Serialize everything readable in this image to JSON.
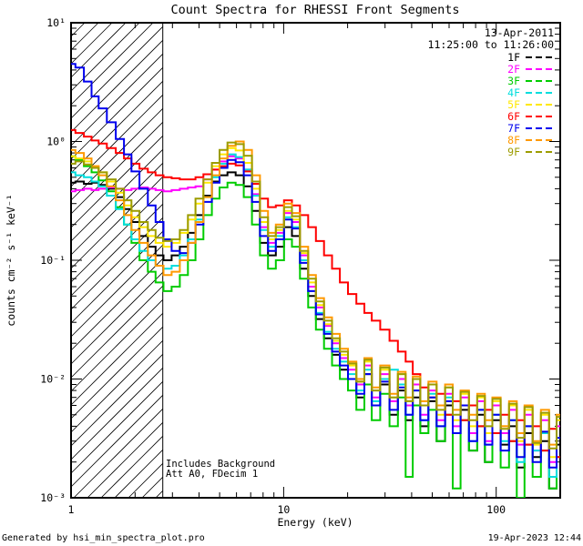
{
  "title": "Count Spectra for RHESSI Front Segments",
  "annotations": {
    "date": "13-Apr-2011",
    "time_range": "11:25:00 to 11:26:00",
    "note_line1": "Includes Background",
    "note_line2": "Att A0, FDecim 1"
  },
  "footer": {
    "generated_by": "Generated by hsi_min_spectra_plot.pro",
    "timestamp": "19-Apr-2023 12:44"
  },
  "chart_data": {
    "type": "line",
    "subtype": "histogram-step",
    "title": "Count Spectra for RHESSI Front Segments",
    "xlabel": "Energy (keV)",
    "ylabel": "counts cm⁻² s⁻¹ keV⁻¹",
    "xscale": "log",
    "yscale": "log",
    "xlim": [
      1,
      200
    ],
    "ylim": [
      0.001,
      10
    ],
    "grid": false,
    "legend_position": "top-right",
    "x_ticks": [
      {
        "value": 1,
        "label": "1"
      },
      {
        "value": 10,
        "label": "10"
      },
      {
        "value": 100,
        "label": "100"
      }
    ],
    "y_ticks": [
      {
        "value": 10,
        "label": "10¹"
      },
      {
        "value": 1,
        "label": "10⁰"
      },
      {
        "value": 0.1,
        "label": "10⁻¹"
      },
      {
        "value": 0.01,
        "label": "10⁻²"
      },
      {
        "value": 0.001,
        "label": "10⁻³"
      }
    ],
    "hatch_region": {
      "xmin": 1,
      "xmax": 2.7
    },
    "x": [
      1.0,
      1.1,
      1.2,
      1.3,
      1.4,
      1.55,
      1.7,
      1.85,
      2.0,
      2.2,
      2.4,
      2.6,
      2.85,
      3.1,
      3.4,
      3.7,
      4.0,
      4.4,
      4.8,
      5.2,
      5.7,
      6.2,
      6.8,
      7.4,
      8.1,
      8.8,
      9.6,
      10.5,
      11.4,
      12.5,
      13.6,
      14.8,
      16.2,
      17.6,
      19.2,
      21,
      23,
      25,
      27,
      30,
      33,
      36,
      39,
      42,
      46,
      50,
      55,
      60,
      65,
      71,
      78,
      85,
      92,
      100,
      110,
      120,
      130,
      142,
      155,
      170,
      185,
      200
    ],
    "series": [
      {
        "name": "1F",
        "color": "#000000",
        "values": [
          0.45,
          0.46,
          0.44,
          0.45,
          0.43,
          0.4,
          0.34,
          0.27,
          0.21,
          0.16,
          0.13,
          0.11,
          0.1,
          0.11,
          0.13,
          0.17,
          0.24,
          0.35,
          0.46,
          0.52,
          0.55,
          0.52,
          0.42,
          0.26,
          0.14,
          0.11,
          0.13,
          0.19,
          0.16,
          0.085,
          0.05,
          0.032,
          0.022,
          0.016,
          0.012,
          0.01,
          0.007,
          0.011,
          0.006,
          0.009,
          0.005,
          0.008,
          0.0045,
          0.007,
          0.004,
          0.0065,
          0.003,
          0.006,
          0.0035,
          0.0055,
          0.0025,
          0.005,
          0.002,
          0.0045,
          0.0028,
          0.004,
          0.0018,
          0.0035,
          0.0022,
          0.003,
          0.0012,
          0.0028
        ]
      },
      {
        "name": "2F",
        "color": "#ff00ff",
        "values": [
          0.38,
          0.39,
          0.4,
          0.39,
          0.4,
          0.41,
          0.4,
          0.39,
          0.4,
          0.41,
          0.4,
          0.39,
          0.38,
          0.39,
          0.4,
          0.41,
          0.42,
          0.48,
          0.58,
          0.68,
          0.75,
          0.72,
          0.58,
          0.36,
          0.19,
          0.14,
          0.17,
          0.25,
          0.21,
          0.11,
          0.06,
          0.04,
          0.028,
          0.02,
          0.015,
          0.012,
          0.009,
          0.013,
          0.007,
          0.011,
          0.0065,
          0.01,
          0.006,
          0.009,
          0.005,
          0.008,
          0.0045,
          0.0075,
          0.004,
          0.007,
          0.0035,
          0.0065,
          0.003,
          0.006,
          0.0035,
          0.0055,
          0.0028,
          0.005,
          0.0025,
          0.0045,
          0.002,
          0.004
        ]
      },
      {
        "name": "3F",
        "color": "#00cc00",
        "values": [
          0.75,
          0.7,
          0.62,
          0.55,
          0.47,
          0.38,
          0.28,
          0.2,
          0.14,
          0.1,
          0.08,
          0.065,
          0.055,
          0.06,
          0.075,
          0.1,
          0.15,
          0.24,
          0.33,
          0.41,
          0.45,
          0.43,
          0.34,
          0.2,
          0.11,
          0.085,
          0.1,
          0.15,
          0.13,
          0.07,
          0.04,
          0.026,
          0.018,
          0.013,
          0.01,
          0.008,
          0.0055,
          0.009,
          0.0045,
          0.0075,
          0.004,
          0.007,
          0.0015,
          0.006,
          0.0035,
          0.0055,
          0.003,
          0.005,
          0.0012,
          0.0045,
          0.0025,
          0.004,
          0.002,
          0.0035,
          0.0018,
          0.003,
          0.001,
          0.0028,
          0.0015,
          0.0025,
          0.0012,
          0.0022
        ]
      },
      {
        "name": "4F",
        "color": "#00dddd",
        "values": [
          0.55,
          0.52,
          0.5,
          0.46,
          0.42,
          0.35,
          0.27,
          0.2,
          0.15,
          0.12,
          0.1,
          0.09,
          0.085,
          0.09,
          0.11,
          0.15,
          0.22,
          0.34,
          0.5,
          0.65,
          0.78,
          0.74,
          0.58,
          0.35,
          0.18,
          0.13,
          0.16,
          0.23,
          0.19,
          0.1,
          0.055,
          0.036,
          0.025,
          0.018,
          0.014,
          0.011,
          0.008,
          0.012,
          0.0065,
          0.01,
          0.012,
          0.009,
          0.005,
          0.008,
          0.0045,
          0.0075,
          0.004,
          0.007,
          0.0035,
          0.006,
          0.003,
          0.0055,
          0.0028,
          0.005,
          0.003,
          0.0045,
          0.002,
          0.004,
          0.0025,
          0.0035,
          0.0015,
          0.0032
        ]
      },
      {
        "name": "5F",
        "color": "#ffe800",
        "values": [
          0.75,
          0.72,
          0.68,
          0.62,
          0.55,
          0.46,
          0.37,
          0.29,
          0.23,
          0.19,
          0.16,
          0.14,
          0.13,
          0.14,
          0.17,
          0.22,
          0.3,
          0.45,
          0.62,
          0.78,
          0.88,
          0.84,
          0.66,
          0.4,
          0.21,
          0.15,
          0.18,
          0.26,
          0.22,
          0.115,
          0.065,
          0.042,
          0.029,
          0.021,
          0.016,
          0.013,
          0.0095,
          0.014,
          0.008,
          0.012,
          0.007,
          0.011,
          0.0065,
          0.01,
          0.006,
          0.009,
          0.005,
          0.0085,
          0.0045,
          0.0075,
          0.004,
          0.007,
          0.0035,
          0.0065,
          0.004,
          0.006,
          0.003,
          0.0055,
          0.0028,
          0.005,
          0.0022,
          0.0045
        ]
      },
      {
        "name": "6F",
        "color": "#ff0000",
        "values": [
          1.25,
          1.18,
          1.1,
          1.02,
          0.96,
          0.88,
          0.8,
          0.72,
          0.65,
          0.59,
          0.55,
          0.52,
          0.5,
          0.49,
          0.48,
          0.48,
          0.5,
          0.53,
          0.58,
          0.62,
          0.65,
          0.63,
          0.56,
          0.44,
          0.33,
          0.28,
          0.29,
          0.32,
          0.29,
          0.24,
          0.19,
          0.145,
          0.11,
          0.085,
          0.065,
          0.052,
          0.043,
          0.036,
          0.031,
          0.026,
          0.021,
          0.017,
          0.014,
          0.011,
          0.0085,
          0.007,
          0.0075,
          0.005,
          0.0065,
          0.0045,
          0.006,
          0.004,
          0.0055,
          0.0035,
          0.005,
          0.003,
          0.0045,
          0.0028,
          0.004,
          0.0025,
          0.0038,
          0.0022
        ]
      },
      {
        "name": "7F",
        "color": "#0000ee",
        "values": [
          4.5,
          4.2,
          3.2,
          2.4,
          1.9,
          1.45,
          1.05,
          0.78,
          0.56,
          0.4,
          0.29,
          0.21,
          0.15,
          0.12,
          0.115,
          0.14,
          0.2,
          0.31,
          0.45,
          0.6,
          0.7,
          0.67,
          0.52,
          0.31,
          0.16,
          0.12,
          0.15,
          0.22,
          0.185,
          0.095,
          0.055,
          0.035,
          0.024,
          0.017,
          0.013,
          0.01,
          0.0075,
          0.011,
          0.006,
          0.0095,
          0.0055,
          0.0085,
          0.005,
          0.008,
          0.0045,
          0.007,
          0.004,
          0.0065,
          0.0035,
          0.006,
          0.003,
          0.0055,
          0.0028,
          0.005,
          0.0025,
          0.0045,
          0.0022,
          0.004,
          0.002,
          0.0036,
          0.0018,
          0.0032
        ]
      },
      {
        "name": "8F",
        "color": "#ff9900",
        "values": [
          0.85,
          0.8,
          0.72,
          0.62,
          0.52,
          0.42,
          0.32,
          0.24,
          0.18,
          0.14,
          0.11,
          0.09,
          0.075,
          0.08,
          0.1,
          0.14,
          0.21,
          0.34,
          0.52,
          0.72,
          0.92,
          1.0,
          0.85,
          0.52,
          0.26,
          0.17,
          0.2,
          0.3,
          0.25,
          0.13,
          0.075,
          0.048,
          0.033,
          0.024,
          0.018,
          0.014,
          0.01,
          0.015,
          0.0085,
          0.013,
          0.0075,
          0.0115,
          0.007,
          0.0105,
          0.0065,
          0.0095,
          0.006,
          0.009,
          0.0055,
          0.008,
          0.005,
          0.0075,
          0.0045,
          0.007,
          0.004,
          0.0065,
          0.0035,
          0.006,
          0.003,
          0.0055,
          0.0028,
          0.005
        ]
      },
      {
        "name": "9F",
        "color": "#9c9c00",
        "values": [
          0.65,
          0.68,
          0.64,
          0.6,
          0.55,
          0.48,
          0.4,
          0.32,
          0.26,
          0.21,
          0.18,
          0.155,
          0.145,
          0.15,
          0.18,
          0.24,
          0.33,
          0.48,
          0.66,
          0.85,
          0.98,
          0.95,
          0.76,
          0.46,
          0.23,
          0.16,
          0.19,
          0.28,
          0.235,
          0.12,
          0.07,
          0.045,
          0.031,
          0.022,
          0.017,
          0.0135,
          0.0095,
          0.0145,
          0.008,
          0.0125,
          0.007,
          0.011,
          0.0065,
          0.01,
          0.006,
          0.009,
          0.0055,
          0.0085,
          0.005,
          0.0078,
          0.0045,
          0.0072,
          0.004,
          0.0068,
          0.0038,
          0.0062,
          0.0032,
          0.0058,
          0.0029,
          0.0052,
          0.0026,
          0.0048
        ]
      }
    ]
  }
}
